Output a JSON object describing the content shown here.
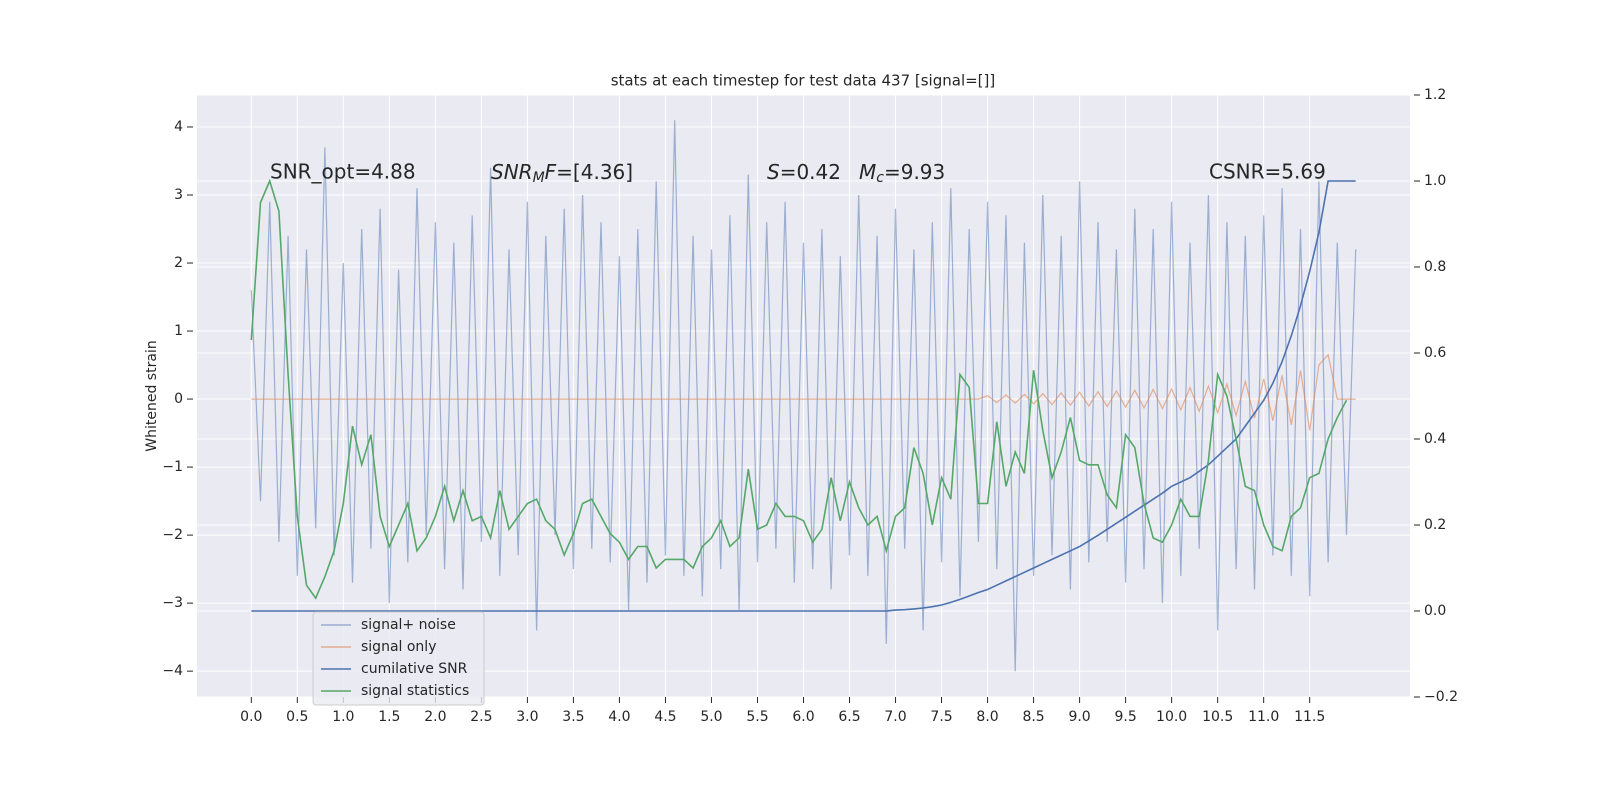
{
  "chart_data": {
    "type": "line",
    "title": "stats at each timestep for test data 437 [signal=[]]",
    "ylabel": "Whitened strain",
    "annotations": {
      "snr_opt": "SNR_opt=4.88",
      "snr_mf": [
        "SNR",
        "M",
        "F",
        "=[4.36]"
      ],
      "s": [
        "S",
        "=0.42"
      ],
      "mc": [
        "M",
        "c",
        "=9.93"
      ],
      "csnr": "CSNR=5.69"
    },
    "x": [
      0.0,
      0.1,
      0.2,
      0.3,
      0.4,
      0.5,
      0.6,
      0.7,
      0.8,
      0.9,
      1.0,
      1.1,
      1.2,
      1.3,
      1.4,
      1.5,
      1.6,
      1.7,
      1.8,
      1.9,
      2.0,
      2.1,
      2.2,
      2.3,
      2.4,
      2.5,
      2.6,
      2.7,
      2.8,
      2.9,
      3.0,
      3.1,
      3.2,
      3.3,
      3.4,
      3.5,
      3.6,
      3.7,
      3.8,
      3.9,
      4.0,
      4.1,
      4.2,
      4.3,
      4.4,
      4.5,
      4.6,
      4.7,
      4.8,
      4.9,
      5.0,
      5.1,
      5.2,
      5.3,
      5.4,
      5.5,
      5.6,
      5.7,
      5.8,
      5.9,
      6.0,
      6.1,
      6.2,
      6.3,
      6.4,
      6.5,
      6.6,
      6.7,
      6.8,
      6.9,
      7.0,
      7.1,
      7.2,
      7.3,
      7.4,
      7.5,
      7.6,
      7.7,
      7.8,
      7.9,
      8.0,
      8.1,
      8.2,
      8.3,
      8.4,
      8.5,
      8.6,
      8.7,
      8.8,
      8.9,
      9.0,
      9.1,
      9.2,
      9.3,
      9.4,
      9.5,
      9.6,
      9.7,
      9.8,
      9.9,
      10.0,
      10.1,
      10.2,
      10.3,
      10.4,
      10.5,
      10.6,
      10.7,
      10.8,
      10.9,
      11.0,
      11.1,
      11.2,
      11.3,
      11.4,
      11.5,
      11.6,
      11.7,
      11.8,
      11.9,
      12.0
    ],
    "series": [
      {
        "name": "signal+ noise",
        "color": "#4c72b0",
        "alpha": 0.5,
        "axis": "y",
        "values": [
          1.6,
          -1.5,
          2.9,
          -2.1,
          2.4,
          -2.6,
          2.2,
          -1.9,
          3.7,
          -2.3,
          2.0,
          -2.7,
          2.5,
          -2.2,
          2.8,
          -3.0,
          1.9,
          -2.4,
          3.1,
          -2.0,
          2.6,
          -2.5,
          2.3,
          -2.8,
          2.7,
          -2.1,
          3.4,
          -2.6,
          2.2,
          -2.3,
          2.9,
          -3.4,
          2.4,
          -2.0,
          2.8,
          -2.5,
          3.0,
          -2.2,
          2.6,
          -2.4,
          2.1,
          -3.1,
          2.5,
          -2.7,
          3.2,
          -2.3,
          4.1,
          -2.6,
          2.4,
          -2.9,
          2.2,
          -2.5,
          2.7,
          -3.1,
          3.3,
          -2.4,
          2.6,
          -2.2,
          2.9,
          -2.7,
          2.3,
          -2.5,
          2.5,
          -2.8,
          2.1,
          -2.3,
          3.0,
          -2.6,
          2.4,
          -3.6,
          2.8,
          -2.2,
          2.2,
          -3.4,
          2.6,
          -2.4,
          3.1,
          -2.9,
          2.5,
          -2.1,
          2.9,
          -2.5,
          2.7,
          -4.0,
          2.3,
          -2.6,
          3.0,
          -2.3,
          2.4,
          -2.8,
          3.2,
          -2.4,
          2.6,
          -2.1,
          2.2,
          -2.7,
          2.8,
          -2.5,
          2.5,
          -3.0,
          2.9,
          -2.6,
          2.3,
          -2.2,
          3.0,
          -3.4,
          2.6,
          -2.5,
          2.4,
          -2.8,
          2.7,
          -2.3,
          3.1,
          -2.6,
          2.5,
          -2.9,
          3.2,
          -2.4,
          2.3,
          -2.0,
          2.2
        ]
      },
      {
        "name": "signal only",
        "color": "#dd8452",
        "alpha": 0.6,
        "axis": "y",
        "values": [
          0,
          0,
          0,
          0,
          0,
          0,
          0,
          0,
          0,
          0,
          0,
          0,
          0,
          0,
          0,
          0,
          0,
          0,
          0,
          0,
          0,
          0,
          0,
          0,
          0,
          0,
          0,
          0,
          0,
          0,
          0,
          0,
          0,
          0,
          0,
          0,
          0,
          0,
          0,
          0,
          0,
          0,
          0,
          0,
          0,
          0,
          0,
          0,
          0,
          0,
          0,
          0,
          0,
          0,
          0,
          0,
          0,
          0,
          0,
          0,
          0,
          0,
          0,
          0,
          0,
          0,
          0,
          0,
          0,
          0,
          0,
          0,
          0,
          0,
          0,
          0,
          0,
          0,
          0,
          0,
          0.05,
          -0.05,
          0.06,
          -0.06,
          0.07,
          -0.07,
          0.08,
          -0.08,
          0.09,
          -0.09,
          0.1,
          -0.1,
          0.11,
          -0.11,
          0.12,
          -0.12,
          0.13,
          -0.13,
          0.14,
          -0.14,
          0.15,
          -0.16,
          0.17,
          -0.18,
          0.19,
          -0.2,
          0.22,
          -0.24,
          0.26,
          -0.28,
          0.3,
          -0.32,
          0.35,
          -0.38,
          0.42,
          -0.46,
          0.5,
          0.65,
          0,
          0,
          0
        ]
      },
      {
        "name": "cumilative SNR",
        "color": "#4c72b0",
        "alpha": 1,
        "axis": "y2",
        "values": [
          0,
          0,
          0,
          0,
          0,
          0,
          0,
          0,
          0,
          0,
          0,
          0,
          0,
          0,
          0,
          0,
          0,
          0,
          0,
          0,
          0,
          0,
          0,
          0,
          0,
          0,
          0,
          0,
          0,
          0,
          0,
          0,
          0,
          0,
          0,
          0,
          0,
          0,
          0,
          0,
          0,
          0,
          0,
          0,
          0,
          0,
          0,
          0,
          0,
          0,
          0,
          0,
          0,
          0,
          0,
          0,
          0,
          0,
          0,
          0,
          0,
          0,
          0,
          0,
          0,
          0,
          0,
          0,
          0,
          0,
          0.002,
          0.003,
          0.005,
          0.007,
          0.01,
          0.014,
          0.02,
          0.027,
          0.035,
          0.043,
          0.05,
          0.06,
          0.07,
          0.08,
          0.09,
          0.1,
          0.11,
          0.12,
          0.13,
          0.14,
          0.15,
          0.163,
          0.176,
          0.19,
          0.204,
          0.218,
          0.232,
          0.246,
          0.26,
          0.274,
          0.29,
          0.3,
          0.31,
          0.325,
          0.34,
          0.36,
          0.38,
          0.4,
          0.43,
          0.46,
          0.49,
          0.53,
          0.58,
          0.64,
          0.71,
          0.79,
          0.88,
          1.0,
          1.0,
          1.0,
          1.0
        ]
      },
      {
        "name": "signal statistics",
        "color": "#55a868",
        "alpha": 1,
        "axis": "y2",
        "values": [
          0.63,
          0.95,
          1.0,
          0.93,
          0.55,
          0.22,
          0.06,
          0.03,
          0.08,
          0.14,
          0.25,
          0.43,
          0.34,
          0.41,
          0.22,
          0.15,
          0.2,
          0.25,
          0.14,
          0.17,
          0.22,
          0.29,
          0.21,
          0.28,
          0.21,
          0.22,
          0.17,
          0.28,
          0.19,
          0.22,
          0.25,
          0.26,
          0.21,
          0.19,
          0.13,
          0.18,
          0.25,
          0.26,
          0.22,
          0.18,
          0.16,
          0.12,
          0.15,
          0.15,
          0.1,
          0.12,
          0.12,
          0.12,
          0.1,
          0.15,
          0.17,
          0.21,
          0.15,
          0.17,
          0.33,
          0.19,
          0.2,
          0.25,
          0.22,
          0.22,
          0.21,
          0.16,
          0.19,
          0.31,
          0.21,
          0.3,
          0.24,
          0.2,
          0.22,
          0.14,
          0.22,
          0.24,
          0.38,
          0.32,
          0.2,
          0.31,
          0.26,
          0.55,
          0.52,
          0.25,
          0.25,
          0.44,
          0.29,
          0.37,
          0.32,
          0.56,
          0.42,
          0.31,
          0.37,
          0.45,
          0.35,
          0.34,
          0.34,
          0.27,
          0.24,
          0.41,
          0.38,
          0.25,
          0.17,
          0.16,
          0.2,
          0.26,
          0.22,
          0.22,
          0.35,
          0.55,
          0.5,
          0.4,
          0.29,
          0.28,
          0.2,
          0.15,
          0.14,
          0.22,
          0.24,
          0.31,
          0.32,
          0.4,
          0.45,
          0.49,
          null
        ]
      }
    ],
    "xlim": [
      -0.59,
      12.59
    ],
    "xticks": [
      {
        "value": 0,
        "label": "0.0"
      },
      0.5,
      {
        "value": 1,
        "label": "1.0"
      },
      1.5,
      {
        "value": 2,
        "label": "2.0"
      },
      2.5,
      {
        "value": 3,
        "label": "3.0"
      },
      3.5,
      {
        "value": 4,
        "label": "4.0"
      },
      4.5,
      {
        "value": 5,
        "label": "5.0"
      },
      5.5,
      {
        "value": 6,
        "label": "6.0"
      },
      6.5,
      {
        "value": 7,
        "label": "7.0"
      },
      7.5,
      {
        "value": 8,
        "label": "8.0"
      },
      8.5,
      {
        "value": 9,
        "label": "9.0"
      },
      9.5,
      {
        "value": 10,
        "label": "10.0"
      },
      10.5,
      {
        "value": 11,
        "label": "11.0"
      },
      11.5
    ],
    "ylim": [
      -4.38,
      4.47
    ],
    "yticks": [
      {
        "value": -4,
        "label": "−4"
      },
      {
        "value": -3,
        "label": "−3"
      },
      {
        "value": -2,
        "label": "−2"
      },
      {
        "value": -1,
        "label": "−1"
      },
      0,
      1,
      2,
      3,
      4
    ],
    "y2lim": [
      -0.2,
      1.2
    ],
    "y2ticks": [
      {
        "value": -0.2,
        "label": "−0.2"
      },
      {
        "value": 0,
        "label": "0.0"
      },
      0.2,
      0.4,
      0.6,
      0.8,
      {
        "value": 1,
        "label": "1.0"
      },
      1.2
    ],
    "grid": true,
    "legend": "lower left"
  }
}
